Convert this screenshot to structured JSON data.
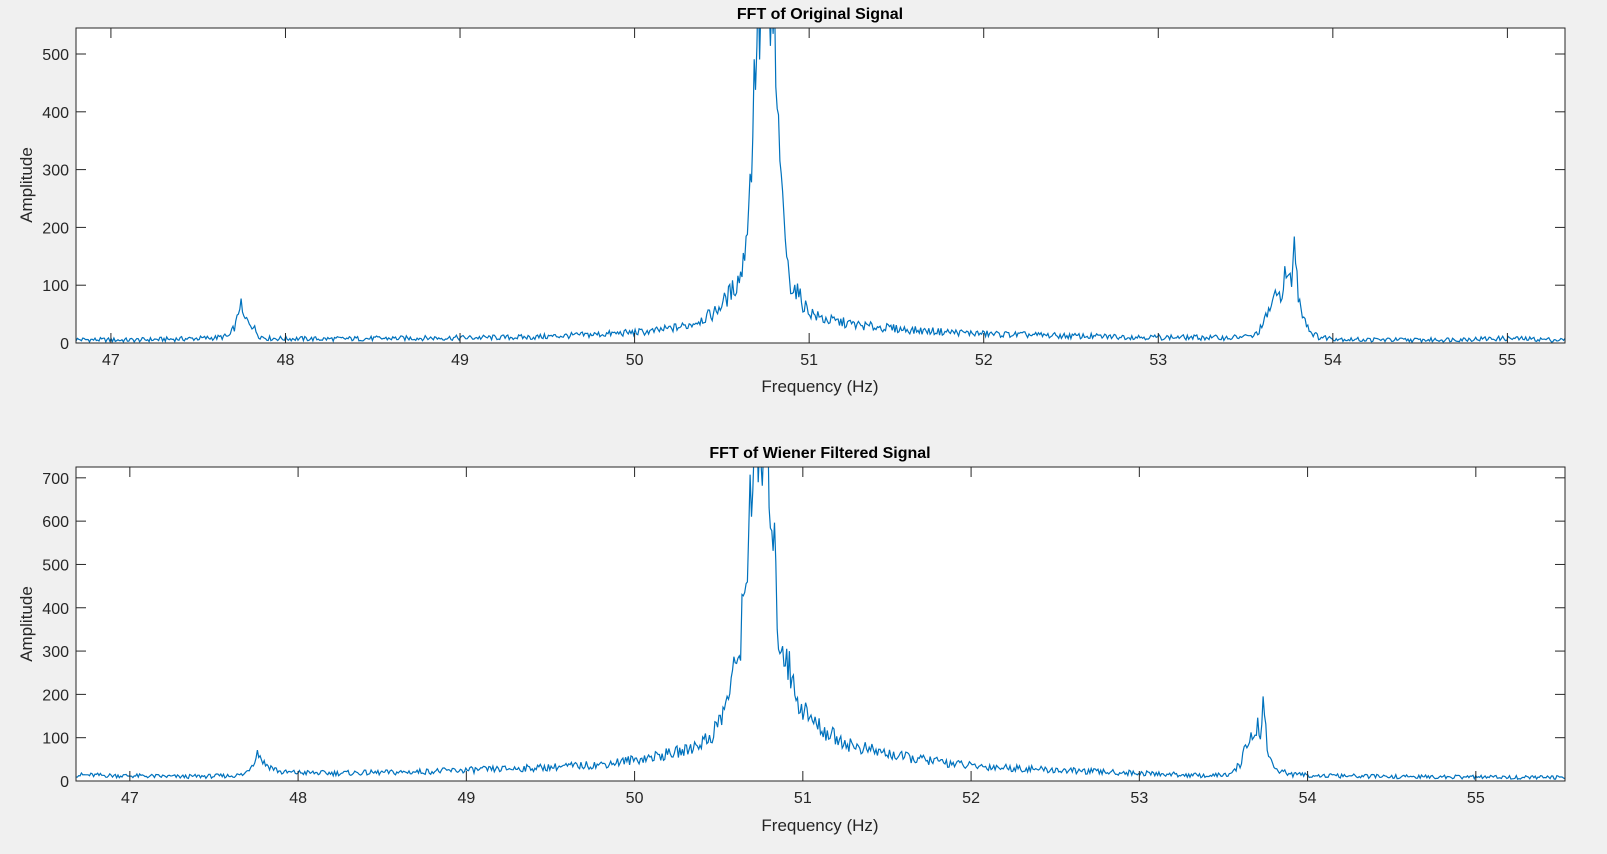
{
  "chart_data": [
    {
      "type": "line",
      "title": "FFT of Original Signal",
      "xlabel": "Frequency (Hz)",
      "ylabel": "Amplitude",
      "xlim": [
        46.8,
        55.33
      ],
      "ylim": [
        0,
        545
      ],
      "xticks": [
        47,
        48,
        49,
        50,
        51,
        52,
        53,
        54,
        55
      ],
      "yticks": [
        0,
        100,
        200,
        300,
        400,
        500
      ],
      "grid": false,
      "line_color": "#0072bd",
      "series": [
        {
          "x": [
            46.8,
            47.1,
            47.4,
            47.6,
            47.68,
            47.72,
            47.74,
            47.76,
            47.8,
            47.85,
            47.9,
            48.2,
            48.6,
            49.0,
            49.4,
            49.8,
            50.1,
            50.3,
            50.45,
            50.52,
            50.58,
            50.62,
            50.66,
            50.68,
            50.7,
            50.72,
            50.74,
            50.76,
            50.78,
            50.8,
            50.82,
            50.83,
            50.84,
            50.86,
            50.88,
            50.9,
            50.93,
            50.96,
            51.0,
            51.05,
            51.1,
            51.3,
            51.6,
            52.0,
            52.5,
            53.0,
            53.4,
            53.55,
            53.6,
            53.65,
            53.7,
            53.73,
            53.76,
            53.78,
            53.8,
            53.83,
            53.87,
            53.92,
            54.1,
            54.5,
            55.0,
            55.33
          ],
          "y": [
            6,
            5,
            7,
            9,
            12,
            35,
            72,
            42,
            35,
            12,
            8,
            7,
            8,
            9,
            10,
            15,
            20,
            30,
            50,
            75,
            100,
            130,
            260,
            400,
            545,
            545,
            545,
            545,
            545,
            545,
            335,
            390,
            250,
            200,
            120,
            100,
            90,
            70,
            55,
            45,
            40,
            30,
            22,
            16,
            12,
            10,
            9,
            12,
            30,
            70,
            85,
            120,
            100,
            178,
            85,
            50,
            20,
            10,
            6,
            5,
            8,
            5
          ]
        }
      ]
    },
    {
      "type": "line",
      "title": "FFT of Wiener Filtered Signal",
      "xlabel": "Frequency (Hz)",
      "ylabel": "Amplitude",
      "xlim": [
        46.68,
        55.53
      ],
      "ylim": [
        0,
        725
      ],
      "xticks": [
        47,
        48,
        49,
        50,
        51,
        52,
        53,
        54,
        55
      ],
      "yticks": [
        0,
        100,
        200,
        300,
        400,
        500,
        600,
        700
      ],
      "grid": false,
      "line_color": "#0072bd",
      "series": [
        {
          "x": [
            46.68,
            47.0,
            47.3,
            47.6,
            47.68,
            47.73,
            47.76,
            47.8,
            47.85,
            47.9,
            48.2,
            48.6,
            49.0,
            49.4,
            49.8,
            50.1,
            50.3,
            50.45,
            50.52,
            50.58,
            50.62,
            50.66,
            50.68,
            50.7,
            50.72,
            50.74,
            50.76,
            50.78,
            50.8,
            50.82,
            50.84,
            50.86,
            50.9,
            50.94,
            50.98,
            51.05,
            51.15,
            51.3,
            51.6,
            52.0,
            52.5,
            53.0,
            53.4,
            53.55,
            53.6,
            53.64,
            53.68,
            53.7,
            53.72,
            53.74,
            53.76,
            53.78,
            53.82,
            53.9,
            54.1,
            54.5,
            55.0,
            55.53
          ],
          "y": [
            14,
            12,
            10,
            12,
            15,
            40,
            68,
            40,
            30,
            20,
            18,
            20,
            25,
            30,
            38,
            55,
            70,
            100,
            150,
            230,
            300,
            450,
            620,
            725,
            725,
            725,
            725,
            725,
            725,
            600,
            450,
            320,
            300,
            220,
            180,
            140,
            110,
            80,
            55,
            35,
            25,
            18,
            12,
            15,
            40,
            90,
            100,
            140,
            90,
            195,
            80,
            45,
            25,
            15,
            12,
            10,
            9,
            8
          ]
        }
      ]
    }
  ]
}
